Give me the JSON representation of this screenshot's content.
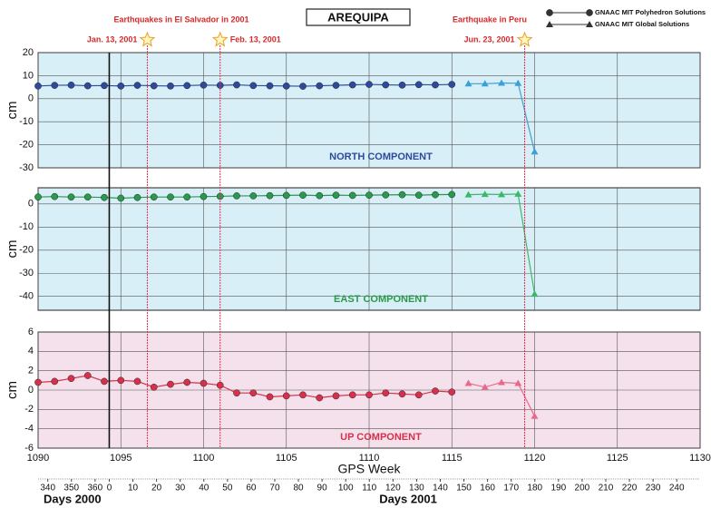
{
  "chart_data": [
    {
      "type": "line",
      "title": "AREQUIPA",
      "label": "NORTH COMPONENT",
      "ylabel": "cm",
      "background": "#d8eff7",
      "ylim": [
        -30,
        20
      ],
      "yticks": [
        -30,
        -20,
        -10,
        0,
        10,
        20
      ],
      "annotations": [
        "Earthquakes in El Salvador in 2001",
        "Earthquake in Peru"
      ],
      "events": [
        {
          "label": "Jan. 13, 2001",
          "x": 1096.6
        },
        {
          "label": "Feb. 13, 2001",
          "x": 1101
        },
        {
          "label": "Jun. 23, 2001",
          "x": 1119.4
        }
      ],
      "series": [
        {
          "name": "GNAAC MIT Polyhedron Solutions",
          "marker": "circle",
          "color": "#2e4a9a",
          "x": [
            1090,
            1091,
            1092,
            1093,
            1094,
            1095,
            1096,
            1097,
            1098,
            1099,
            1100,
            1101,
            1102,
            1103,
            1104,
            1105,
            1106,
            1107,
            1108,
            1109,
            1110,
            1111,
            1112,
            1113,
            1114,
            1115
          ],
          "values": [
            5.5,
            5.8,
            5.9,
            5.6,
            5.7,
            5.5,
            5.8,
            5.6,
            5.5,
            5.7,
            5.9,
            5.8,
            6,
            5.7,
            5.6,
            5.5,
            5.4,
            5.6,
            5.8,
            6,
            6.2,
            6,
            5.9,
            6.1,
            6,
            6.2
          ]
        },
        {
          "name": "GNAAC MIT Global Solutions",
          "marker": "triangle",
          "color": "#3aa0d8",
          "x": [
            1116,
            1117,
            1118,
            1119,
            1120
          ],
          "values": [
            6.5,
            6.5,
            6.8,
            6.7,
            -23
          ]
        }
      ]
    },
    {
      "type": "line",
      "label": "EAST COMPONENT",
      "ylabel": "cm",
      "background": "#d8eff7",
      "ylim": [
        -46,
        7
      ],
      "yticks": [
        -40,
        -30,
        -20,
        -10,
        0
      ],
      "series": [
        {
          "marker": "circle",
          "color": "#2a9a4a",
          "x": [
            1090,
            1091,
            1092,
            1093,
            1094,
            1095,
            1096,
            1097,
            1098,
            1099,
            1100,
            1101,
            1102,
            1103,
            1104,
            1105,
            1106,
            1107,
            1108,
            1109,
            1110,
            1111,
            1112,
            1113,
            1114,
            1115
          ],
          "values": [
            3,
            3.2,
            3,
            3,
            2.8,
            2.5,
            2.8,
            3,
            3,
            3,
            3.2,
            3.3,
            3.5,
            3.5,
            3.6,
            3.7,
            3.8,
            3.6,
            3.8,
            3.7,
            3.8,
            3.9,
            4,
            3.8,
            4,
            4.1
          ]
        },
        {
          "marker": "triangle",
          "color": "#3cb86a",
          "x": [
            1116,
            1117,
            1118,
            1119,
            1120
          ],
          "values": [
            4,
            4.2,
            4.1,
            4.3,
            -39
          ]
        }
      ]
    },
    {
      "type": "line",
      "label": "UP COMPONENT",
      "ylabel": "cm",
      "background": "#f5e1ec",
      "ylim": [
        -6,
        6
      ],
      "yticks": [
        -6,
        -4,
        -2,
        0,
        2,
        4,
        6
      ],
      "xlim": [
        1090,
        1130
      ],
      "xticks": [
        1090,
        1095,
        1100,
        1105,
        1110,
        1115,
        1120,
        1125,
        1130
      ],
      "xlabel": "GPS Week",
      "x2lim": [
        -30.1,
        249.9
      ],
      "x2_2000": {
        "label": "Days 2000",
        "ticks": [
          {
            "value": -26,
            "label": "340"
          },
          {
            "value": -16,
            "label": "350"
          },
          {
            "value": -6,
            "label": "360"
          }
        ]
      },
      "x2_2001": {
        "label": "Days 2001",
        "ticks": [
          0,
          10,
          20,
          30,
          40,
          50,
          60,
          70,
          80,
          90,
          100,
          110,
          120,
          130,
          140,
          150,
          160,
          170,
          180,
          190,
          200,
          210,
          220,
          230,
          240
        ]
      },
      "series": [
        {
          "marker": "circle",
          "color": "#d9304a",
          "x": [
            1090,
            1091,
            1092,
            1093,
            1094,
            1095,
            1096,
            1097,
            1098,
            1099,
            1100,
            1101,
            1102,
            1103,
            1104,
            1105,
            1106,
            1107,
            1108,
            1109,
            1110,
            1111,
            1112,
            1113,
            1114,
            1115
          ],
          "values": [
            0.8,
            0.9,
            1.2,
            1.5,
            0.9,
            1.0,
            0.9,
            0.3,
            0.6,
            0.8,
            0.7,
            0.5,
            -0.3,
            -0.3,
            -0.7,
            -0.6,
            -0.5,
            -0.8,
            -0.6,
            -0.5,
            -0.5,
            -0.3,
            -0.4,
            -0.5,
            -0.1,
            -0.2
          ]
        },
        {
          "marker": "triangle",
          "color": "#e86a8a",
          "x": [
            1116,
            1117,
            1118,
            1119,
            1120
          ],
          "values": [
            0.7,
            0.3,
            0.8,
            0.7,
            -2.7
          ]
        }
      ]
    }
  ]
}
